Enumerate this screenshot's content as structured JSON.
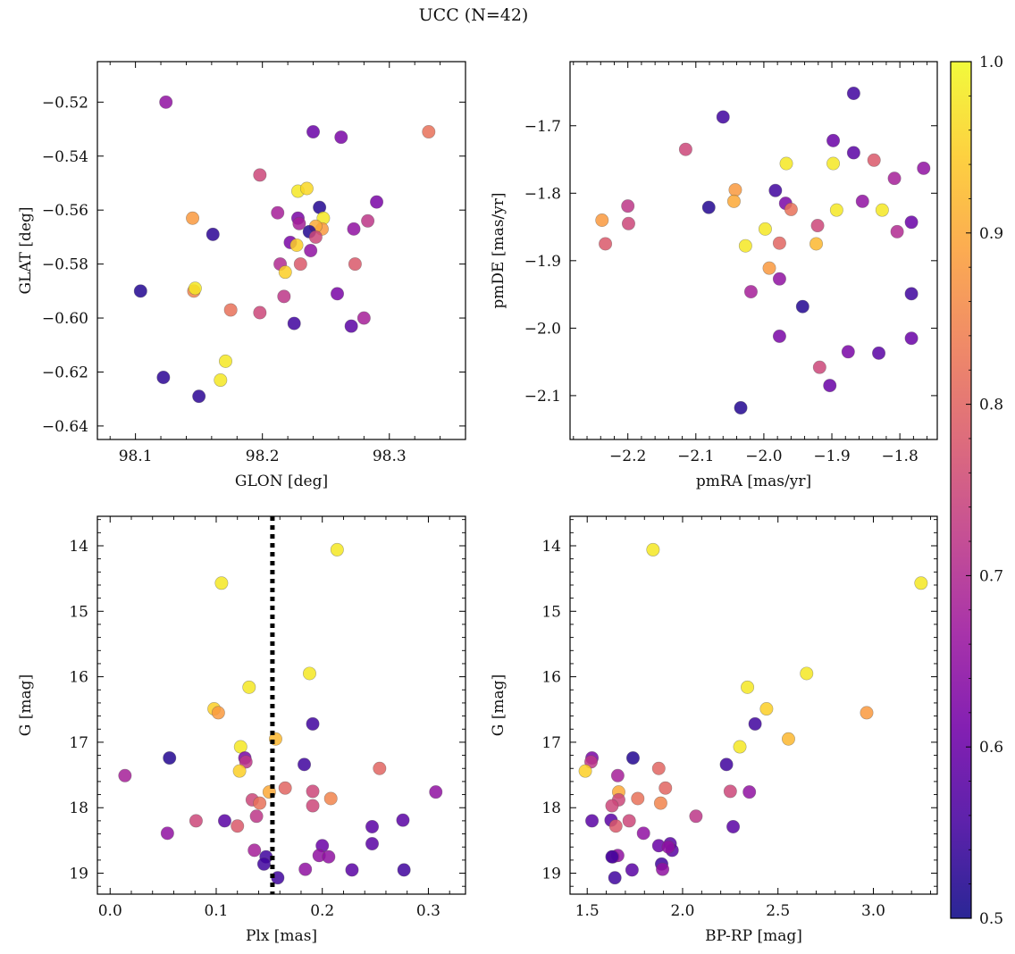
{
  "figure": {
    "title": "UCC (N=42)"
  },
  "colorbar": {
    "min": 0.5,
    "max": 1.0,
    "ticks": [
      0.5,
      0.6,
      0.7,
      0.8,
      0.9,
      1.0
    ],
    "colormap": "plasma",
    "stops": [
      "#0d0887",
      "#46039f",
      "#7201a8",
      "#9c179e",
      "#bd3786",
      "#d8576b",
      "#ed7953",
      "#fb9f3a",
      "#fdca26",
      "#f0f921"
    ]
  },
  "chart_data": [
    {
      "type": "scatter",
      "title": "",
      "xlabel": "GLON [deg]",
      "ylabel": "GLAT [deg]",
      "xlim": [
        98.07,
        98.36
      ],
      "ylim": [
        -0.645,
        -0.505
      ],
      "xticks": [
        98.1,
        98.2,
        98.3
      ],
      "yticks": [
        -0.52,
        -0.54,
        -0.56,
        -0.58,
        -0.6,
        -0.62,
        -0.64
      ],
      "xtick_labels": [
        "98.1",
        "98.2",
        "98.3"
      ],
      "ytick_labels": [
        "−0.52",
        "−0.54",
        "−0.56",
        "−0.58",
        "−0.60",
        "−0.62",
        "−0.64"
      ],
      "y_inverted": false,
      "points": [
        [
          98.124,
          -0.52,
          0.65
        ],
        [
          98.24,
          -0.531,
          0.6
        ],
        [
          98.262,
          -0.533,
          0.62
        ],
        [
          98.331,
          -0.531,
          0.82
        ],
        [
          98.198,
          -0.547,
          0.75
        ],
        [
          98.145,
          -0.563,
          0.88
        ],
        [
          98.228,
          -0.553,
          0.98
        ],
        [
          98.235,
          -0.552,
          0.96
        ],
        [
          98.245,
          -0.559,
          0.52
        ],
        [
          98.29,
          -0.557,
          0.62
        ],
        [
          98.161,
          -0.569,
          0.53
        ],
        [
          98.212,
          -0.561,
          0.68
        ],
        [
          98.228,
          -0.563,
          0.62
        ],
        [
          98.229,
          -0.565,
          0.68
        ],
        [
          98.248,
          -0.563,
          0.98
        ],
        [
          98.247,
          -0.567,
          0.88
        ],
        [
          98.242,
          -0.566,
          0.9
        ],
        [
          98.237,
          -0.568,
          0.52
        ],
        [
          98.272,
          -0.567,
          0.65
        ],
        [
          98.283,
          -0.564,
          0.72
        ],
        [
          98.222,
          -0.572,
          0.62
        ],
        [
          98.227,
          -0.573,
          0.95
        ],
        [
          98.242,
          -0.57,
          0.75
        ],
        [
          98.238,
          -0.575,
          0.65
        ],
        [
          98.214,
          -0.58,
          0.7
        ],
        [
          98.218,
          -0.583,
          0.95
        ],
        [
          98.23,
          -0.58,
          0.78
        ],
        [
          98.273,
          -0.58,
          0.78
        ],
        [
          98.104,
          -0.59,
          0.52
        ],
        [
          98.146,
          -0.59,
          0.85
        ],
        [
          98.147,
          -0.589,
          0.98
        ],
        [
          98.217,
          -0.592,
          0.72
        ],
        [
          98.259,
          -0.591,
          0.62
        ],
        [
          98.175,
          -0.597,
          0.82
        ],
        [
          98.198,
          -0.598,
          0.75
        ],
        [
          98.225,
          -0.602,
          0.55
        ],
        [
          98.27,
          -0.603,
          0.58
        ],
        [
          98.28,
          -0.6,
          0.68
        ],
        [
          98.171,
          -0.616,
          0.98
        ],
        [
          98.167,
          -0.623,
          0.98
        ],
        [
          98.122,
          -0.622,
          0.53
        ],
        [
          98.15,
          -0.629,
          0.53
        ]
      ]
    },
    {
      "type": "scatter",
      "title": "",
      "xlabel": "pmRA [mas/yr]",
      "ylabel": "pmDE [mas/yr]",
      "xlim": [
        -2.285,
        -1.745
      ],
      "ylim": [
        -2.165,
        -1.605
      ],
      "xticks": [
        -2.2,
        -2.1,
        -2.0,
        -1.9,
        -1.8
      ],
      "yticks": [
        -1.7,
        -1.8,
        -1.9,
        -2.0,
        -2.1
      ],
      "xtick_labels": [
        "−2.2",
        "−2.1",
        "−2.0",
        "−1.9",
        "−1.8"
      ],
      "ytick_labels": [
        "−1.7",
        "−1.8",
        "−1.9",
        "−2.0",
        "−2.1"
      ],
      "y_inverted": false,
      "points": [
        [
          -1.868,
          -1.652,
          0.55
        ],
        [
          -2.06,
          -1.687,
          0.55
        ],
        [
          -2.115,
          -1.735,
          0.75
        ],
        [
          -1.898,
          -1.722,
          0.6
        ],
        [
          -1.868,
          -1.74,
          0.58
        ],
        [
          -1.838,
          -1.751,
          0.78
        ],
        [
          -1.765,
          -1.763,
          0.65
        ],
        [
          -1.967,
          -1.756,
          0.98
        ],
        [
          -1.898,
          -1.756,
          0.98
        ],
        [
          -1.808,
          -1.778,
          0.68
        ],
        [
          -2.042,
          -1.795,
          0.88
        ],
        [
          -1.983,
          -1.796,
          0.55
        ],
        [
          -2.044,
          -1.812,
          0.9
        ],
        [
          -1.968,
          -1.815,
          0.62
        ],
        [
          -1.855,
          -1.812,
          0.65
        ],
        [
          -2.081,
          -1.821,
          0.52
        ],
        [
          -2.2,
          -1.819,
          0.72
        ],
        [
          -1.96,
          -1.824,
          0.82
        ],
        [
          -1.893,
          -1.825,
          0.98
        ],
        [
          -1.826,
          -1.825,
          0.98
        ],
        [
          -2.238,
          -1.84,
          0.88
        ],
        [
          -2.199,
          -1.845,
          0.75
        ],
        [
          -1.998,
          -1.853,
          0.98
        ],
        [
          -1.921,
          -1.848,
          0.75
        ],
        [
          -1.783,
          -1.843,
          0.6
        ],
        [
          -1.804,
          -1.857,
          0.7
        ],
        [
          -2.233,
          -1.875,
          0.78
        ],
        [
          -2.027,
          -1.878,
          0.98
        ],
        [
          -1.977,
          -1.874,
          0.8
        ],
        [
          -1.923,
          -1.875,
          0.92
        ],
        [
          -1.992,
          -1.911,
          0.88
        ],
        [
          -1.977,
          -1.927,
          0.65
        ],
        [
          -2.019,
          -1.946,
          0.68
        ],
        [
          -1.943,
          -1.968,
          0.52
        ],
        [
          -1.783,
          -1.949,
          0.55
        ],
        [
          -1.977,
          -2.012,
          0.62
        ],
        [
          -1.783,
          -2.015,
          0.6
        ],
        [
          -1.876,
          -2.035,
          0.62
        ],
        [
          -1.831,
          -2.037,
          0.58
        ],
        [
          -1.918,
          -2.058,
          0.75
        ],
        [
          -1.903,
          -2.085,
          0.6
        ],
        [
          -2.034,
          -2.118,
          0.52
        ]
      ]
    },
    {
      "type": "scatter",
      "title": "",
      "xlabel": "Plx [mas]",
      "ylabel": "G [mag]",
      "xlim": [
        -0.012,
        0.335
      ],
      "ylim": [
        19.32,
        13.55
      ],
      "xticks": [
        0.0,
        0.1,
        0.2,
        0.3
      ],
      "yticks": [
        14,
        15,
        16,
        17,
        18,
        19
      ],
      "xtick_labels": [
        "0.0",
        "0.1",
        "0.2",
        "0.3"
      ],
      "ytick_labels": [
        "14",
        "15",
        "16",
        "17",
        "18",
        "19"
      ],
      "y_inverted": true,
      "vline": {
        "x": 0.153,
        "style": "dotted",
        "color": "#000000"
      },
      "points": [
        [
          0.214,
          14.06,
          0.98
        ],
        [
          0.105,
          14.57,
          0.98
        ],
        [
          0.188,
          15.95,
          0.98
        ],
        [
          0.131,
          16.16,
          0.98
        ],
        [
          0.098,
          16.49,
          0.95
        ],
        [
          0.102,
          16.55,
          0.88
        ],
        [
          0.191,
          16.72,
          0.55
        ],
        [
          0.156,
          16.95,
          0.92
        ],
        [
          0.123,
          17.07,
          0.98
        ],
        [
          0.127,
          17.24,
          0.62
        ],
        [
          0.128,
          17.3,
          0.72
        ],
        [
          0.056,
          17.24,
          0.52
        ],
        [
          0.183,
          17.34,
          0.55
        ],
        [
          0.122,
          17.44,
          0.95
        ],
        [
          0.014,
          17.51,
          0.68
        ],
        [
          0.254,
          17.4,
          0.8
        ],
        [
          0.165,
          17.7,
          0.8
        ],
        [
          0.15,
          17.76,
          0.9
        ],
        [
          0.191,
          17.75,
          0.75
        ],
        [
          0.307,
          17.76,
          0.65
        ],
        [
          0.134,
          17.88,
          0.75
        ],
        [
          0.141,
          17.93,
          0.82
        ],
        [
          0.208,
          17.86,
          0.85
        ],
        [
          0.191,
          17.97,
          0.75
        ],
        [
          0.081,
          18.2,
          0.75
        ],
        [
          0.108,
          18.2,
          0.58
        ],
        [
          0.12,
          18.28,
          0.78
        ],
        [
          0.138,
          18.13,
          0.72
        ],
        [
          0.247,
          18.29,
          0.58
        ],
        [
          0.276,
          18.19,
          0.58
        ],
        [
          0.054,
          18.39,
          0.65
        ],
        [
          0.2,
          18.58,
          0.6
        ],
        [
          0.136,
          18.65,
          0.68
        ],
        [
          0.147,
          18.75,
          0.55
        ],
        [
          0.197,
          18.73,
          0.65
        ],
        [
          0.206,
          18.75,
          0.65
        ],
        [
          0.145,
          18.86,
          0.55
        ],
        [
          0.247,
          18.55,
          0.58
        ],
        [
          0.228,
          18.95,
          0.58
        ],
        [
          0.277,
          18.95,
          0.55
        ],
        [
          0.184,
          18.94,
          0.65
        ],
        [
          0.158,
          19.07,
          0.55
        ]
      ]
    },
    {
      "type": "scatter",
      "title": "",
      "xlabel": "BP-RP [mag]",
      "ylabel": "G [mag]",
      "xlim": [
        1.41,
        3.335
      ],
      "ylim": [
        19.32,
        13.55
      ],
      "xticks": [
        1.5,
        2.0,
        2.5,
        3.0
      ],
      "yticks": [
        14,
        15,
        16,
        17,
        18,
        19
      ],
      "xtick_labels": [
        "1.5",
        "2.0",
        "2.5",
        "3.0"
      ],
      "ytick_labels": [
        "14",
        "15",
        "16",
        "17",
        "18",
        "19"
      ],
      "y_inverted": true,
      "points": [
        [
          1.845,
          14.06,
          0.98
        ],
        [
          3.25,
          14.57,
          0.98
        ],
        [
          2.65,
          15.95,
          0.98
        ],
        [
          2.34,
          16.16,
          0.98
        ],
        [
          2.44,
          16.49,
          0.95
        ],
        [
          2.965,
          16.55,
          0.88
        ],
        [
          2.38,
          16.72,
          0.55
        ],
        [
          2.555,
          16.95,
          0.92
        ],
        [
          2.3,
          17.07,
          0.98
        ],
        [
          1.525,
          17.24,
          0.62
        ],
        [
          1.52,
          17.3,
          0.72
        ],
        [
          1.74,
          17.24,
          0.52
        ],
        [
          2.23,
          17.34,
          0.55
        ],
        [
          1.49,
          17.44,
          0.95
        ],
        [
          1.66,
          17.51,
          0.68
        ],
        [
          1.875,
          17.4,
          0.8
        ],
        [
          1.91,
          17.7,
          0.8
        ],
        [
          1.665,
          17.76,
          0.9
        ],
        [
          2.25,
          17.75,
          0.75
        ],
        [
          2.35,
          17.76,
          0.65
        ],
        [
          1.665,
          17.88,
          0.75
        ],
        [
          1.765,
          17.86,
          0.82
        ],
        [
          1.885,
          17.93,
          0.85
        ],
        [
          1.63,
          17.97,
          0.75
        ],
        [
          1.525,
          18.2,
          0.58
        ],
        [
          1.625,
          18.19,
          0.58
        ],
        [
          1.72,
          18.2,
          0.75
        ],
        [
          2.07,
          18.13,
          0.72
        ],
        [
          1.65,
          18.28,
          0.78
        ],
        [
          2.265,
          18.29,
          0.58
        ],
        [
          1.795,
          18.39,
          0.65
        ],
        [
          1.875,
          18.58,
          0.6
        ],
        [
          1.935,
          18.55,
          0.58
        ],
        [
          1.945,
          18.65,
          0.58
        ],
        [
          1.635,
          18.75,
          0.68
        ],
        [
          1.66,
          18.73,
          0.65
        ],
        [
          1.89,
          18.86,
          0.55
        ],
        [
          1.895,
          18.94,
          0.65
        ],
        [
          1.735,
          18.95,
          0.58
        ],
        [
          1.645,
          19.07,
          0.55
        ],
        [
          1.63,
          18.75,
          0.55
        ],
        [
          1.925,
          18.6,
          0.65
        ]
      ]
    }
  ]
}
